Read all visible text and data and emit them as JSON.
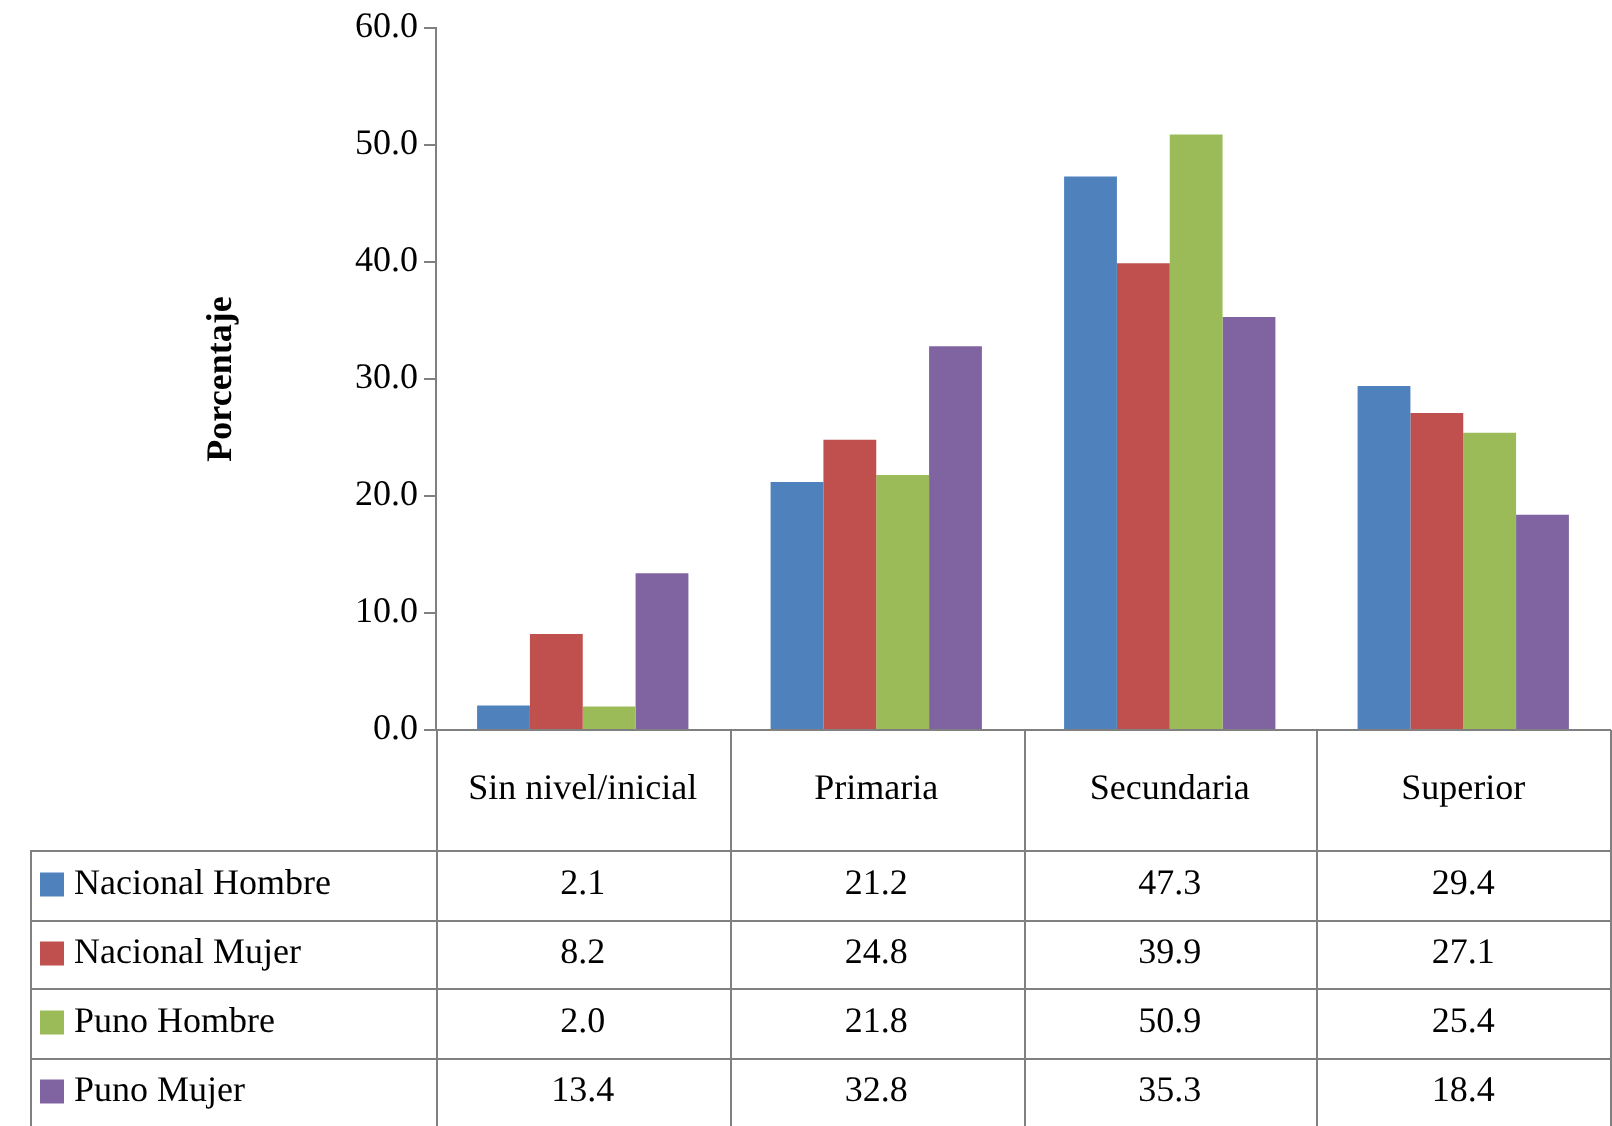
{
  "chart_data": {
    "type": "bar",
    "ylabel": "Porcentaje",
    "categories": [
      "Sin nivel/inicial",
      "Primaria",
      "Secundaria",
      "Superior"
    ],
    "series": [
      {
        "name": "Nacional Hombre",
        "color": "#4f81bd",
        "values": [
          2.1,
          21.2,
          47.3,
          29.4
        ],
        "value_labels": [
          "2.1",
          "21.2",
          "47.3",
          "29.4"
        ]
      },
      {
        "name": "Nacional Mujer",
        "color": "#c0504d",
        "values": [
          8.2,
          24.8,
          39.9,
          27.1
        ],
        "value_labels": [
          "8.2",
          "24.8",
          "39.9",
          "27.1"
        ]
      },
      {
        "name": "Puno Hombre",
        "color": "#9bbb59",
        "values": [
          2.0,
          21.8,
          50.9,
          25.4
        ],
        "value_labels": [
          "2.0",
          "21.8",
          "50.9",
          "25.4"
        ]
      },
      {
        "name": "Puno Mujer",
        "color": "#8064a2",
        "values": [
          13.4,
          32.8,
          35.3,
          18.4
        ],
        "value_labels": [
          "13.4",
          "32.8",
          "35.3",
          "18.4"
        ]
      }
    ],
    "ylim": [
      0,
      60
    ],
    "yticks": [
      {
        "value": 0,
        "label": "0.0"
      },
      {
        "value": 10,
        "label": "10.0"
      },
      {
        "value": 20,
        "label": "20.0"
      },
      {
        "value": 30,
        "label": "30.0"
      },
      {
        "value": 40,
        "label": "40.0"
      },
      {
        "value": 50,
        "label": "50.0"
      },
      {
        "value": 60,
        "label": "60.0"
      }
    ],
    "grid": false,
    "legend": "bottom"
  }
}
